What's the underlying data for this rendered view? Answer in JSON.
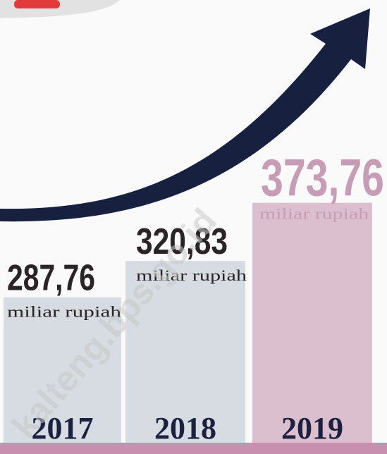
{
  "chart_data": {
    "type": "bar",
    "categories": [
      "2017",
      "2018",
      "2019"
    ],
    "values": [
      287.76,
      320.83,
      373.76
    ],
    "value_labels": [
      "287,76",
      "320,83",
      "373,76"
    ],
    "unit": "miliar rupiah",
    "colors": [
      "#d6dce1",
      "#d6dce1",
      "#dcbfcf"
    ],
    "label_colors": [
      "#2a2426",
      "#2a2426",
      "#c79db5"
    ],
    "watermark": "kalteng.bps.go.id"
  }
}
